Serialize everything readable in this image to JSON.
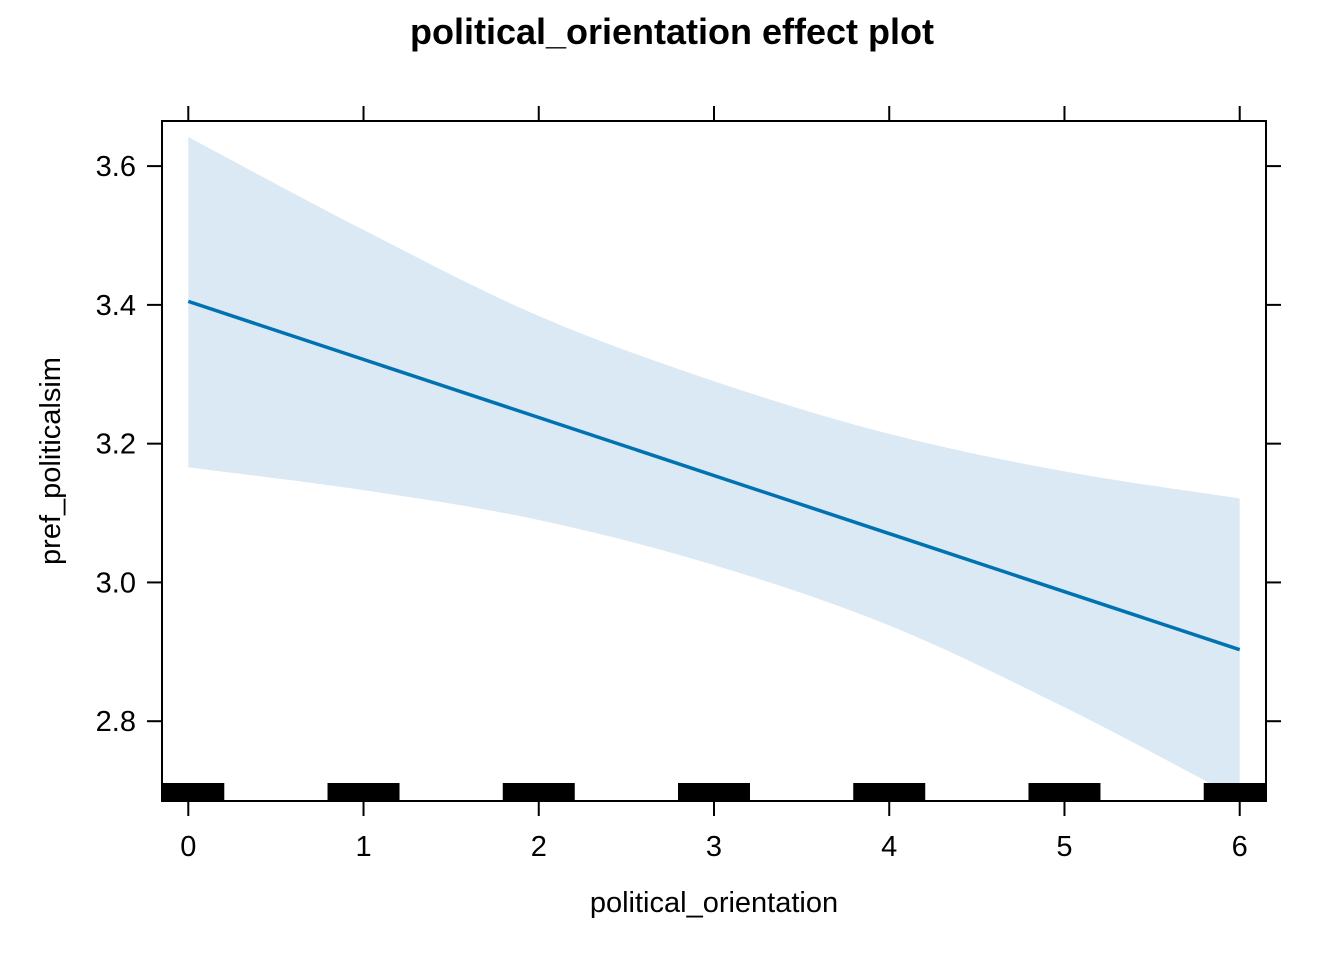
{
  "chart_data": {
    "type": "line",
    "title": "political_orientation effect plot",
    "xlabel": "political_orientation",
    "ylabel": "pref_politicalsim",
    "xlim": [
      -0.15,
      6.15
    ],
    "ylim": [
      2.685,
      3.665
    ],
    "x_ticks": [
      0,
      1,
      2,
      3,
      4,
      5,
      6
    ],
    "y_ticks": [
      2.8,
      3.0,
      3.2,
      3.4,
      3.6
    ],
    "x_tick_labels": [
      "0",
      "1",
      "2",
      "3",
      "4",
      "5",
      "6"
    ],
    "y_tick_labels": [
      "2.8",
      "3.0",
      "3.2",
      "3.4",
      "3.6"
    ],
    "series": [
      {
        "x": [
          0,
          6
        ],
        "y": [
          3.405,
          2.903
        ]
      }
    ],
    "confidence_band": {
      "x": [
        0,
        1,
        2,
        3,
        4,
        5,
        6
      ],
      "upper": [
        3.642,
        3.508,
        3.384,
        3.29,
        3.214,
        3.16,
        3.121
      ],
      "lower": [
        3.166,
        3.133,
        3.09,
        3.025,
        2.938,
        2.82,
        2.688
      ]
    },
    "rug_x": [
      0,
      1,
      2,
      3,
      4,
      5,
      6
    ],
    "line_color": "#0072b2",
    "band_color": "#dae9f4",
    "grid": false,
    "legend": "none"
  }
}
